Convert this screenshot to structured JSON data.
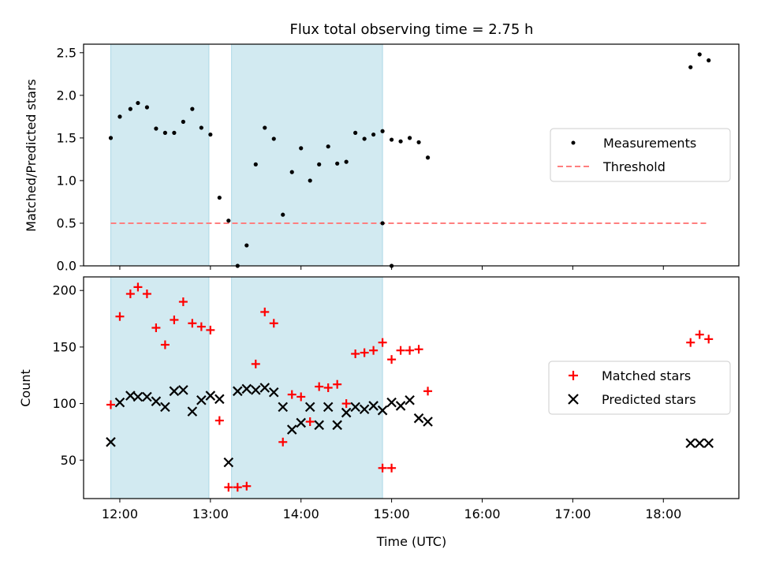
{
  "figure": {
    "title": "Flux total observing time = 2.75 h"
  },
  "colors": {
    "shade": "#add8e6",
    "threshold": "#ff7f7f",
    "matched": "#ff0000",
    "predicted": "#000000",
    "measurement": "#000000"
  },
  "shaded_intervals": [
    [
      "11:54",
      "12:59"
    ],
    [
      "13:14",
      "14:54"
    ]
  ],
  "chart_data": [
    {
      "type": "scatter",
      "ylabel": "Matched/Predicted stars",
      "xlim": [
        "11:36",
        "18:50"
      ],
      "ylim": [
        0,
        2.6
      ],
      "y_ticks": [
        "0.0",
        "0.5",
        "1.0",
        "1.5",
        "2.0",
        "2.5"
      ],
      "legend": {
        "position": "center-right",
        "entries": [
          "Measurements",
          "Threshold"
        ]
      },
      "threshold": {
        "name": "Threshold",
        "value": 0.5,
        "x_range": [
          "11:54",
          "18:30"
        ]
      },
      "series": [
        {
          "name": "Measurements",
          "points": [
            [
              "11:54",
              1.5
            ],
            [
              "12:00",
              1.75
            ],
            [
              "12:07",
              1.84
            ],
            [
              "12:12",
              1.91
            ],
            [
              "12:18",
              1.86
            ],
            [
              "12:24",
              1.61
            ],
            [
              "12:30",
              1.56
            ],
            [
              "12:36",
              1.56
            ],
            [
              "12:42",
              1.69
            ],
            [
              "12:48",
              1.84
            ],
            [
              "12:54",
              1.62
            ],
            [
              "13:00",
              1.54
            ],
            [
              "13:06",
              0.8
            ],
            [
              "13:12",
              0.53
            ],
            [
              "13:18",
              0.0
            ],
            [
              "13:24",
              0.24
            ],
            [
              "13:30",
              1.19
            ],
            [
              "13:36",
              1.62
            ],
            [
              "13:42",
              1.49
            ],
            [
              "13:48",
              0.6
            ],
            [
              "13:54",
              1.1
            ],
            [
              "14:00",
              1.38
            ],
            [
              "14:06",
              1.0
            ],
            [
              "14:12",
              1.19
            ],
            [
              "14:18",
              1.4
            ],
            [
              "14:24",
              1.2
            ],
            [
              "14:30",
              1.22
            ],
            [
              "14:36",
              1.56
            ],
            [
              "14:42",
              1.49
            ],
            [
              "14:48",
              1.54
            ],
            [
              "14:54",
              1.58
            ],
            [
              "15:00",
              1.48
            ],
            [
              "15:06",
              1.46
            ],
            [
              "15:12",
              1.5
            ],
            [
              "15:18",
              1.45
            ],
            [
              "15:24",
              1.27
            ],
            [
              "14:54",
              0.5
            ],
            [
              "15:00",
              0.0
            ],
            [
              "18:18",
              2.33
            ],
            [
              "18:24",
              2.48
            ],
            [
              "18:30",
              2.41
            ]
          ]
        }
      ]
    },
    {
      "type": "scatter",
      "xlabel": "Time (UTC)",
      "ylabel": "Count",
      "xlim": [
        "11:36",
        "18:50"
      ],
      "ylim": [
        16,
        212
      ],
      "x_ticks": [
        "12:00",
        "13:00",
        "14:00",
        "15:00",
        "16:00",
        "17:00",
        "18:00"
      ],
      "y_ticks": [
        "50",
        "100",
        "150",
        "200"
      ],
      "legend": {
        "position": "center-right",
        "entries": [
          "Matched stars",
          "Predicted stars"
        ]
      },
      "series": [
        {
          "name": "Matched stars",
          "marker": "+",
          "points": [
            [
              "11:54",
              99
            ],
            [
              "12:00",
              177
            ],
            [
              "12:07",
              197
            ],
            [
              "12:12",
              203
            ],
            [
              "12:18",
              197
            ],
            [
              "12:24",
              167
            ],
            [
              "12:30",
              152
            ],
            [
              "12:36",
              174
            ],
            [
              "12:42",
              190
            ],
            [
              "12:48",
              171
            ],
            [
              "12:54",
              168
            ],
            [
              "13:00",
              165
            ],
            [
              "13:06",
              85
            ],
            [
              "13:12",
              26
            ],
            [
              "13:18",
              26
            ],
            [
              "13:24",
              27
            ],
            [
              "13:30",
              135
            ],
            [
              "13:36",
              181
            ],
            [
              "13:42",
              171
            ],
            [
              "13:48",
              66
            ],
            [
              "13:54",
              108
            ],
            [
              "14:00",
              106
            ],
            [
              "14:06",
              84
            ],
            [
              "14:12",
              115
            ],
            [
              "14:18",
              114
            ],
            [
              "14:24",
              117
            ],
            [
              "14:30",
              100
            ],
            [
              "14:36",
              144
            ],
            [
              "14:42",
              145
            ],
            [
              "14:48",
              147
            ],
            [
              "14:54",
              154
            ],
            [
              "15:00",
              139
            ],
            [
              "15:06",
              147
            ],
            [
              "15:12",
              147
            ],
            [
              "15:18",
              148
            ],
            [
              "15:24",
              111
            ],
            [
              "14:54",
              43
            ],
            [
              "15:00",
              43
            ],
            [
              "18:18",
              154
            ],
            [
              "18:24",
              161
            ],
            [
              "18:30",
              157
            ]
          ]
        },
        {
          "name": "Predicted stars",
          "marker": "x",
          "points": [
            [
              "11:54",
              66
            ],
            [
              "12:00",
              101
            ],
            [
              "12:07",
              107
            ],
            [
              "12:12",
              106
            ],
            [
              "12:18",
              106
            ],
            [
              "12:24",
              102
            ],
            [
              "12:30",
              97
            ],
            [
              "12:36",
              111
            ],
            [
              "12:42",
              112
            ],
            [
              "12:48",
              93
            ],
            [
              "12:54",
              103
            ],
            [
              "13:00",
              107
            ],
            [
              "13:06",
              104
            ],
            [
              "13:12",
              48
            ],
            [
              "13:18",
              111
            ],
            [
              "13:24",
              113
            ],
            [
              "13:30",
              112
            ],
            [
              "13:36",
              114
            ],
            [
              "13:42",
              110
            ],
            [
              "13:48",
              97
            ],
            [
              "13:54",
              77
            ],
            [
              "14:00",
              83
            ],
            [
              "14:06",
              97
            ],
            [
              "14:12",
              81
            ],
            [
              "14:18",
              97
            ],
            [
              "14:24",
              81
            ],
            [
              "14:30",
              92
            ],
            [
              "14:36",
              97
            ],
            [
              "14:42",
              95
            ],
            [
              "14:48",
              98
            ],
            [
              "14:54",
              94
            ],
            [
              "15:00",
              101
            ],
            [
              "15:06",
              98
            ],
            [
              "15:12",
              103
            ],
            [
              "15:18",
              87
            ],
            [
              "15:24",
              84
            ],
            [
              "18:18",
              65
            ],
            [
              "18:24",
              65
            ],
            [
              "18:30",
              65
            ]
          ]
        }
      ]
    }
  ]
}
